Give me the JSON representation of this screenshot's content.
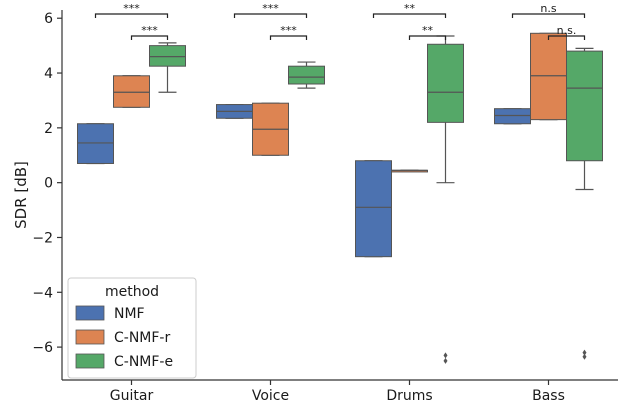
{
  "chart_data": {
    "type": "box",
    "ylabel": "SDR [dB]",
    "xlabel": "",
    "ylim": [
      -7.2,
      6.3
    ],
    "yticks": [
      -6,
      -4,
      -2,
      0,
      2,
      4,
      6
    ],
    "ytick_labels": [
      "−6",
      "−4",
      "−2",
      "0",
      "2",
      "4",
      "6"
    ],
    "categories": [
      "Guitar",
      "Voice",
      "Drums",
      "Bass"
    ],
    "legend": {
      "title": "method",
      "position": "lower-left"
    },
    "series": [
      {
        "name": "NMF",
        "color": "#4c72b0",
        "boxes": [
          {
            "whislo": 0.7,
            "q1": 0.7,
            "med": 1.45,
            "q3": 2.15,
            "whishi": 2.15,
            "fliers": []
          },
          {
            "whislo": 2.35,
            "q1": 2.35,
            "med": 2.6,
            "q3": 2.85,
            "whishi": 2.85,
            "fliers": []
          },
          {
            "whislo": -2.7,
            "q1": -2.7,
            "med": -0.9,
            "q3": 0.8,
            "whishi": 0.8,
            "fliers": []
          },
          {
            "whislo": 2.15,
            "q1": 2.15,
            "med": 2.45,
            "q3": 2.7,
            "whishi": 2.7,
            "fliers": []
          }
        ]
      },
      {
        "name": "C-NMF-r",
        "color": "#dd8452",
        "boxes": [
          {
            "whislo": 2.75,
            "q1": 2.75,
            "med": 3.3,
            "q3": 3.9,
            "whishi": 3.9,
            "fliers": []
          },
          {
            "whislo": 1.0,
            "q1": 1.0,
            "med": 1.95,
            "q3": 2.9,
            "whishi": 2.9,
            "fliers": []
          },
          {
            "whislo": 0.45,
            "q1": 0.45,
            "med": 0.45,
            "q3": 0.45,
            "whishi": 0.45,
            "fliers": []
          },
          {
            "whislo": 2.3,
            "q1": 2.3,
            "med": 3.9,
            "q3": 5.45,
            "whishi": 5.45,
            "fliers": []
          }
        ]
      },
      {
        "name": "C-NMF-e",
        "color": "#55a868",
        "boxes": [
          {
            "whislo": 3.3,
            "q1": 4.25,
            "med": 4.6,
            "q3": 5.0,
            "whishi": 5.1,
            "fliers": []
          },
          {
            "whislo": 3.45,
            "q1": 3.6,
            "med": 3.85,
            "q3": 4.25,
            "whishi": 4.4,
            "fliers": []
          },
          {
            "whislo": 0.0,
            "q1": 2.2,
            "med": 3.3,
            "q3": 5.05,
            "whishi": 5.35,
            "fliers": [
              -6.3,
              -6.5
            ]
          },
          {
            "whislo": -0.25,
            "q1": 0.8,
            "med": 3.45,
            "q3": 4.8,
            "whishi": 4.9,
            "fliers": [
              -6.2,
              -6.35
            ]
          }
        ]
      }
    ],
    "annotations": [
      {
        "category": 0,
        "from_series": 0,
        "to_series": 2,
        "label": "***",
        "level": 2
      },
      {
        "category": 0,
        "from_series": 1,
        "to_series": 2,
        "label": "***",
        "level": 1
      },
      {
        "category": 1,
        "from_series": 0,
        "to_series": 2,
        "label": "***",
        "level": 2
      },
      {
        "category": 1,
        "from_series": 1,
        "to_series": 2,
        "label": "***",
        "level": 1
      },
      {
        "category": 2,
        "from_series": 0,
        "to_series": 2,
        "label": "**",
        "level": 2
      },
      {
        "category": 2,
        "from_series": 1,
        "to_series": 2,
        "label": "**",
        "level": 1
      },
      {
        "category": 3,
        "from_series": 0,
        "to_series": 2,
        "label": "n.s",
        "level": 2
      },
      {
        "category": 3,
        "from_series": 1,
        "to_series": 2,
        "label": "n.s.",
        "level": 1
      }
    ]
  }
}
